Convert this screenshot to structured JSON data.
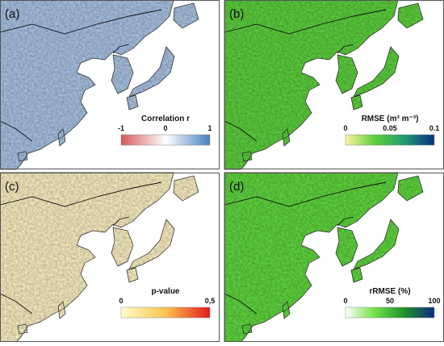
{
  "panels": [
    {
      "label": "(a)",
      "land_color": "#a9c3e3",
      "colorbar": {
        "title": "Correlation r",
        "ticks": [
          -1,
          0,
          1
        ],
        "colors": [
          "#d25a5a",
          "#ffffff",
          "#4a7fc0"
        ]
      }
    },
    {
      "label": "(b)",
      "land_color": "#5ccf3c",
      "colorbar": {
        "title": "RMSE (m³ m⁻³)",
        "ticks": [
          0,
          0.05,
          0.1
        ],
        "colors": [
          "#fbf3a2",
          "#5fce3c",
          "#1f9b74",
          "#0b2f86"
        ]
      }
    },
    {
      "label": "(c)",
      "land_color": "#fbefc2",
      "colorbar": {
        "title": "p-value",
        "ticks": [
          0,
          {
            "value": 0.5,
            "label": "0,5"
          }
        ],
        "colors": [
          "#ffffcc",
          "#fec44f",
          "#e31a1c"
        ]
      }
    },
    {
      "label": "(d)",
      "land_color": "#5fd63e",
      "colorbar": {
        "title": "rRMSE (%)",
        "ticks": [
          0,
          50,
          100
        ],
        "colors": [
          "#ffffff",
          "#6fe044",
          "#1f8f2c",
          "#0e2a82"
        ]
      }
    }
  ]
}
